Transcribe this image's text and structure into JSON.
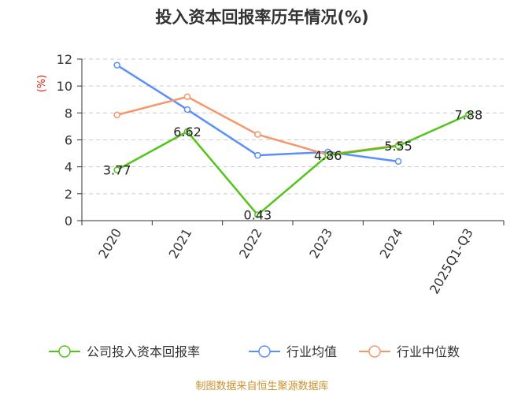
{
  "chart_data": {
    "type": "line",
    "title": "投入资本回报率历年情况(%)",
    "ylabel": "(%)",
    "ylim": [
      0,
      12
    ],
    "yticks": [
      0,
      2,
      4,
      6,
      8,
      10,
      12
    ],
    "categories": [
      "2020",
      "2021",
      "2022",
      "2023",
      "2024",
      "2025Q1-Q3"
    ],
    "grid": true,
    "legend_position": "bottom",
    "series": [
      {
        "name": "公司投入资本回报率",
        "color": "#52c41a",
        "values": [
          3.77,
          6.62,
          0.43,
          4.86,
          5.55,
          7.88
        ],
        "labels": [
          "3.77",
          "6.62",
          "0.43",
          "4.86",
          "5.55",
          "7.88"
        ]
      },
      {
        "name": "行业均值",
        "color": "#5b8ff9",
        "values": [
          11.55,
          8.25,
          4.85,
          5.1,
          4.4,
          null
        ]
      },
      {
        "name": "行业中位数",
        "color": "#f4976c",
        "values": [
          7.85,
          9.2,
          6.4,
          4.9,
          5.6,
          null
        ]
      }
    ]
  },
  "footer": {
    "source": "制图数据来自恒生聚源数据库"
  }
}
